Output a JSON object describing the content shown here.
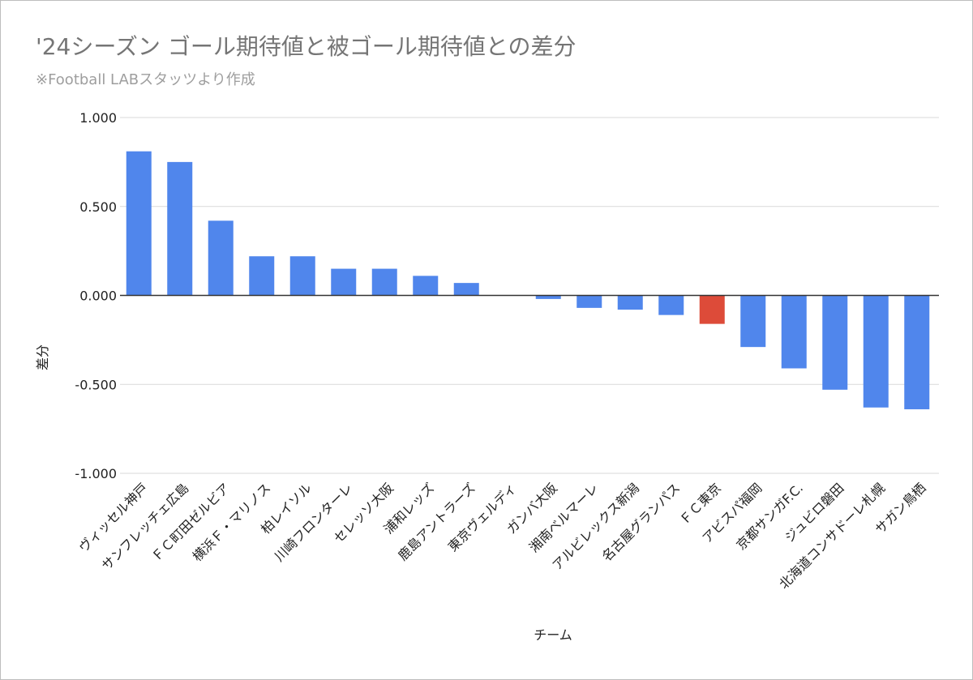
{
  "chart_data": {
    "type": "bar",
    "title": "'24シーズン ゴール期待値と被ゴール期待値との差分",
    "subtitle": "※Football LABスタッツより作成",
    "xlabel": "チーム",
    "ylabel": "差分",
    "ylim": [
      -1.0,
      1.0
    ],
    "yticks": [
      "1.000",
      "0.500",
      "0.000",
      "-0.500",
      "-1.000"
    ],
    "ytick_values": [
      1.0,
      0.5,
      0.0,
      -0.5,
      -1.0
    ],
    "grid": true,
    "legend": "none",
    "colors": {
      "default": "#5086ec",
      "highlight": "#dd4b39",
      "grid": "#d9d9d9",
      "zero_line": "#333333"
    },
    "categories": [
      "ヴィッセル神戸",
      "サンフレッチェ広島",
      "ＦＣ町田ゼルビア",
      "横浜Ｆ・マリノス",
      "柏レイソル",
      "川崎フロンターレ",
      "セレッソ大阪",
      "浦和レッズ",
      "鹿島アントラーズ",
      "東京ヴェルディ",
      "ガンバ大阪",
      "湘南ベルマーレ",
      "アルビレックス新潟",
      "名古屋グランパス",
      "ＦＣ東京",
      "アビスパ福岡",
      "京都サンガF.C.",
      "ジュビロ磐田",
      "北海道コンサドーレ札幌",
      "サガン鳥栖"
    ],
    "values": [
      0.81,
      0.75,
      0.42,
      0.22,
      0.22,
      0.15,
      0.15,
      0.11,
      0.07,
      0.0,
      -0.02,
      -0.07,
      -0.08,
      -0.11,
      -0.16,
      -0.29,
      -0.41,
      -0.53,
      -0.63,
      -0.64
    ],
    "highlight_index": 14
  }
}
